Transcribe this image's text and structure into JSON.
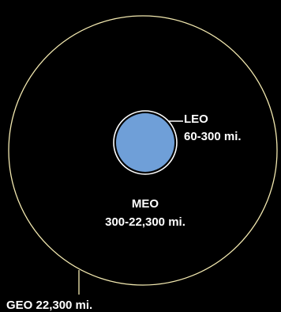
{
  "colors": {
    "background": "#000000",
    "orbit_line": "#f3e9b0",
    "earth_fill": "#6f9fd8",
    "earth_stroke": "#ffffff",
    "text": "#ffffff"
  },
  "labels": {
    "leo_name": "LEO",
    "leo_range": "60-300 mi.",
    "meo_name": "MEO",
    "meo_range": "300-22,300 mi.",
    "geo": "GEO 22,300 mi."
  }
}
